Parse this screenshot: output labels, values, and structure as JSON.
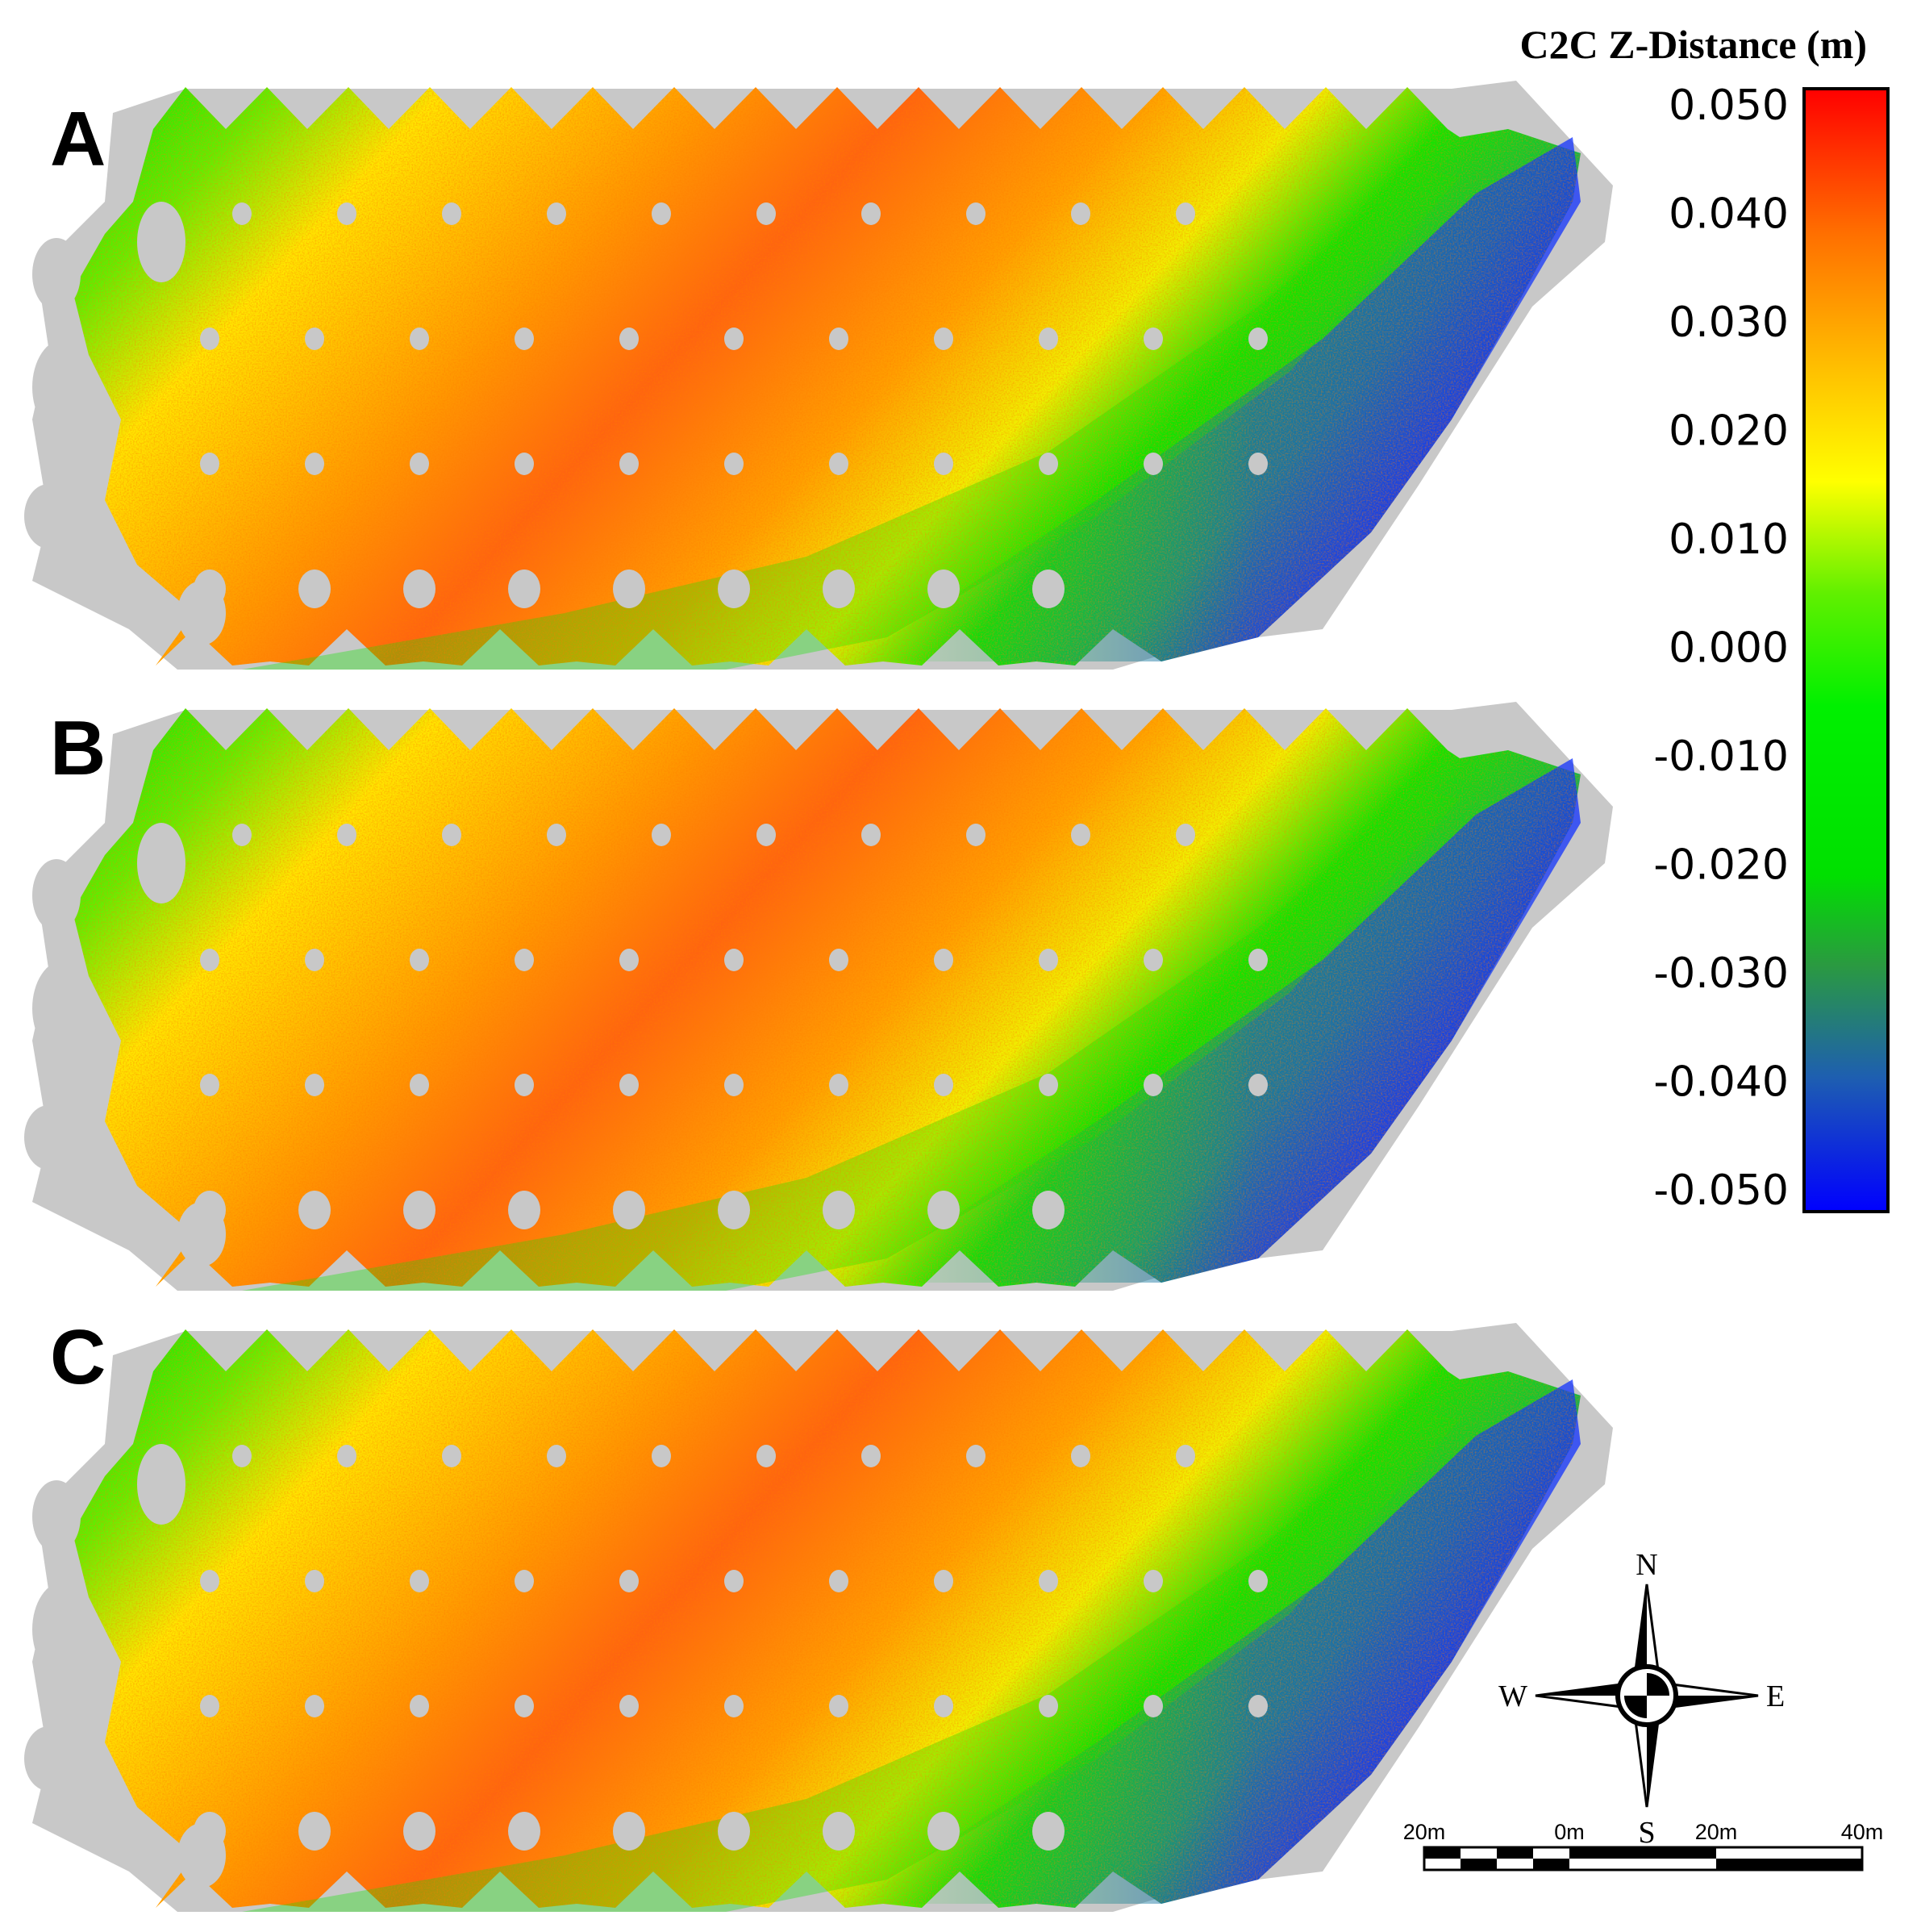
{
  "panels": [
    {
      "id": "A",
      "label": "A"
    },
    {
      "id": "B",
      "label": "B"
    },
    {
      "id": "C",
      "label": "C"
    }
  ],
  "legend": {
    "title": "C2C Z-Distance (m)",
    "ticks": [
      "0.050",
      "0.040",
      "0.030",
      "0.020",
      "0.010",
      "0.000",
      "-0.010",
      "-0.020",
      "-0.030",
      "-0.040",
      "-0.050"
    ],
    "range": [
      -0.05,
      0.05
    ],
    "colors": [
      "#0000ff",
      "#1e6fa0",
      "#28a03c",
      "#00e600",
      "#00f500",
      "#7df000",
      "#ffff00",
      "#ffb400",
      "#ff6a00",
      "#ff0000"
    ]
  },
  "map_colors": {
    "no_data": "#c8c8c8",
    "field_high": "#ff6a1e",
    "field_mid": "#ffe000",
    "field_low": "#1aef00",
    "edge_negative": "#1438e6"
  },
  "compass": {
    "north": "N",
    "south": "S",
    "east": "E",
    "west": "W"
  },
  "scalebar": {
    "labels": [
      "20m",
      "0m",
      "20m",
      "40m"
    ]
  }
}
